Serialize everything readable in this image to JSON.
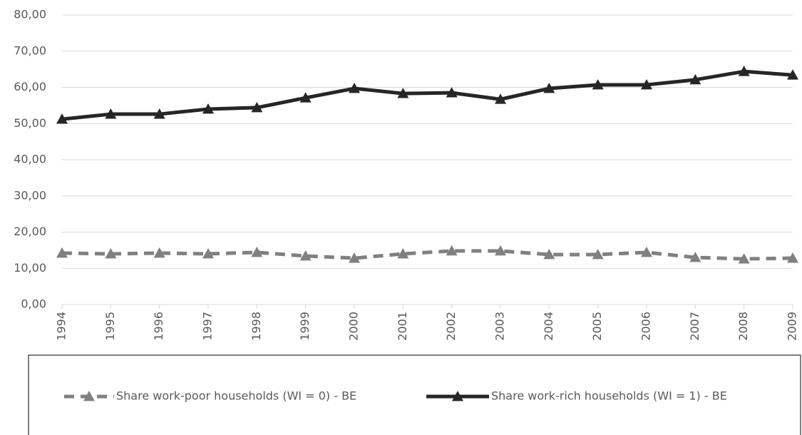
{
  "chart_data": {
    "type": "line",
    "categories": [
      "1994",
      "1995",
      "1996",
      "1997",
      "1998",
      "1999",
      "2000",
      "2001",
      "2002",
      "2003",
      "2004",
      "2005",
      "2006",
      "2007",
      "2008",
      "2009"
    ],
    "series": [
      {
        "name": "Share work-poor households (WI = 0) - BE",
        "color": "#808080",
        "line_style": "dashed",
        "marker": "triangle",
        "values": [
          14.2,
          14.0,
          14.2,
          14.0,
          14.4,
          13.4,
          12.8,
          14.0,
          14.8,
          14.8,
          13.8,
          13.8,
          14.4,
          13.0,
          12.6,
          12.8
        ]
      },
      {
        "name": "Share work-rich households (WI = 1) - BE",
        "color": "#262626",
        "line_style": "solid",
        "marker": "triangle",
        "values": [
          51.2,
          52.6,
          52.6,
          54.0,
          54.4,
          57.1,
          59.7,
          58.3,
          58.5,
          56.7,
          59.7,
          60.7,
          60.7,
          62.1,
          64.4,
          63.4
        ]
      }
    ],
    "ylim": [
      0,
      80
    ],
    "yticks": [
      {
        "value": 0,
        "label": "0,00"
      },
      {
        "value": 10,
        "label": "10,00"
      },
      {
        "value": 20,
        "label": "20,00"
      },
      {
        "value": 30,
        "label": "30,00"
      },
      {
        "value": 40,
        "label": "40,00"
      },
      {
        "value": 50,
        "label": "50,00"
      },
      {
        "value": 60,
        "label": "60,00"
      },
      {
        "value": 70,
        "label": "70,00"
      },
      {
        "value": 80,
        "label": "80,00"
      }
    ],
    "grid": true,
    "legend": "bottom"
  }
}
